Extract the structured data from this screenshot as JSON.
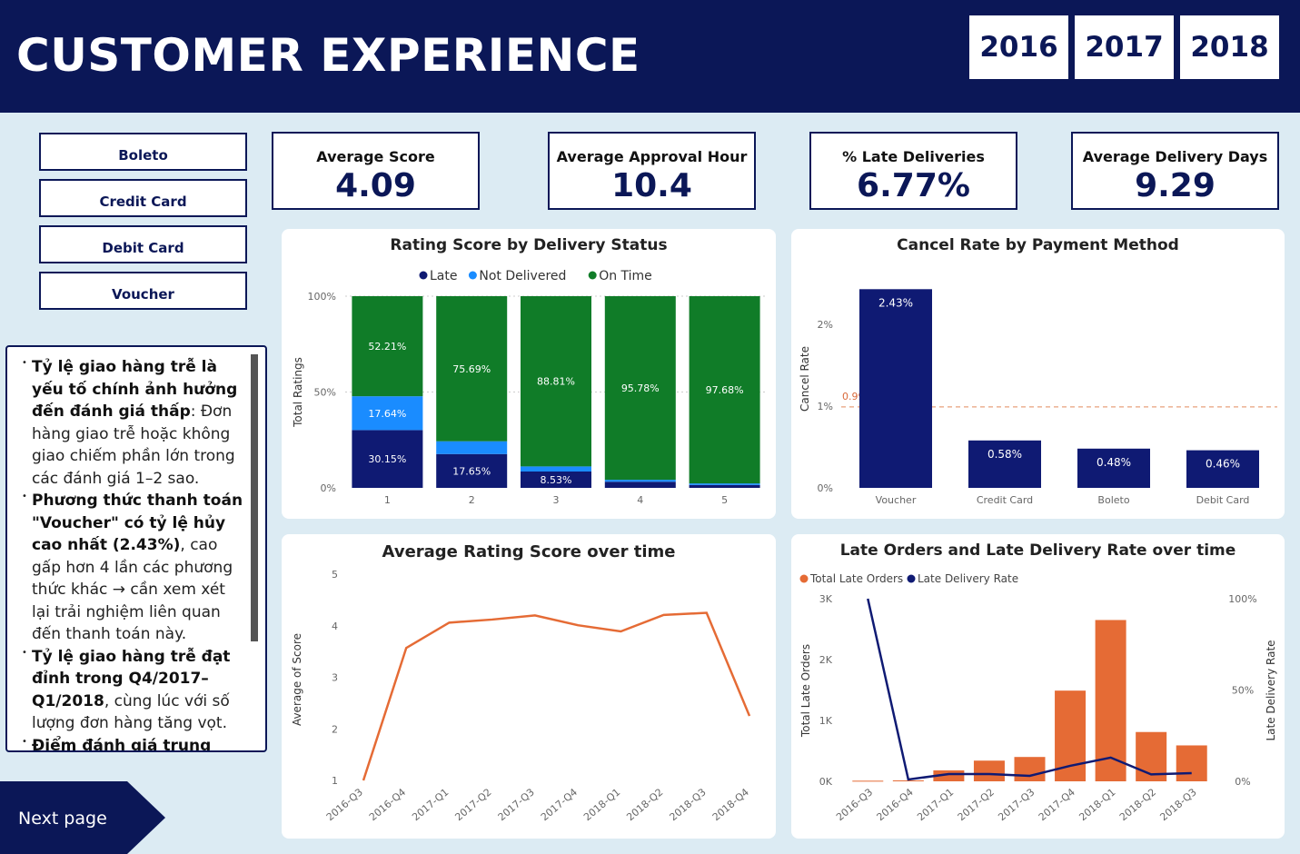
{
  "header": {
    "title": "CUSTOMER EXPERIENCE",
    "years": [
      "2016",
      "2017",
      "2018"
    ]
  },
  "payment_filters": [
    "Boleto",
    "Credit Card",
    "Debit Card",
    "Voucher"
  ],
  "kpis": [
    {
      "label": "Average Score",
      "value": "4.09"
    },
    {
      "label": "Average Approval Hour",
      "value": "10.4"
    },
    {
      "label": "% Late Deliveries",
      "value": "6.77%"
    },
    {
      "label": "Average Delivery Days",
      "value": "9.29"
    }
  ],
  "notes": {
    "items": [
      {
        "bold": "Tỷ lệ giao hàng trễ là yếu tố chính ảnh hưởng đến đánh giá thấp",
        "text": ": Đơn hàng giao trễ hoặc không giao chiếm phần lớn trong các đánh giá 1–2 sao."
      },
      {
        "bold": "Phương thức thanh toán \"Voucher\" có tỷ lệ hủy cao nhất (2.43%)",
        "text": ", cao gấp hơn 4 lần các phương thức khác → cần xem xét lại trải nghiệm liên quan đến thanh toán này."
      },
      {
        "bold": "Tỷ lệ giao hàng trễ đạt đỉnh trong Q4/2017–Q1/2018",
        "text": ", cùng lúc với số lượng đơn hàng tăng vọt."
      },
      {
        "bold": "Điểm đánh giá trung bình",
        "text": ""
      }
    ]
  },
  "nav": {
    "next_label": "Next page"
  },
  "colors": {
    "navy": "#0b1757",
    "late": "#0f1a73",
    "not_delivered": "#1a8cff",
    "on_time": "#107c28",
    "orange": "#e56b35"
  },
  "chart_data": [
    {
      "id": "rating_by_status",
      "type": "bar",
      "stacked": "100%",
      "title": "Rating Score by Delivery Status",
      "ylabel": "Total Ratings",
      "yticks": [
        "0%",
        "50%",
        "100%"
      ],
      "categories": [
        "1",
        "2",
        "3",
        "4",
        "5"
      ],
      "series": [
        {
          "name": "Late",
          "values": [
            30.15,
            17.65,
            8.53,
            3.2,
            1.5
          ],
          "labels": [
            "30.15%",
            "17.65%",
            "8.53%",
            "",
            ""
          ]
        },
        {
          "name": "Not Delivered",
          "values": [
            17.64,
            6.66,
            2.66,
            1.02,
            0.82
          ],
          "labels": [
            "17.64%",
            "",
            "",
            "",
            ""
          ]
        },
        {
          "name": "On Time",
          "values": [
            52.21,
            75.69,
            88.81,
            95.78,
            97.68
          ],
          "labels": [
            "52.21%",
            "75.69%",
            "88.81%",
            "95.78%",
            "97.68%"
          ]
        }
      ]
    },
    {
      "id": "cancel_rate",
      "type": "bar",
      "title": "Cancel Rate by Payment Method",
      "ylabel": "Cancel Rate",
      "yticks": [
        "0%",
        "1%",
        "2%"
      ],
      "ylim": [
        0,
        2.5
      ],
      "categories": [
        "Voucher",
        "Credit Card",
        "Boleto",
        "Debit Card"
      ],
      "values": [
        2.43,
        0.58,
        0.48,
        0.46
      ],
      "labels": [
        "2.43%",
        "0.58%",
        "0.48%",
        "0.46%"
      ],
      "reference_line": {
        "value": 0.99,
        "label": "0.99%"
      }
    },
    {
      "id": "avg_rating_time",
      "type": "line",
      "title": "Average Rating Score over time",
      "ylabel": "Average of Score",
      "yticks": [
        "1",
        "2",
        "3",
        "4",
        "5"
      ],
      "ylim": [
        1,
        5
      ],
      "x": [
        "2016-Q3",
        "2016-Q4",
        "2017-Q1",
        "2017-Q2",
        "2017-Q3",
        "2017-Q4",
        "2018-Q1",
        "2018-Q2",
        "2018-Q3",
        "2018-Q4"
      ],
      "values": [
        1.0,
        3.57,
        4.06,
        4.12,
        4.2,
        4.01,
        3.89,
        4.21,
        4.25,
        2.25
      ]
    },
    {
      "id": "late_orders_time",
      "type": "bar",
      "title": "Late Orders and Late Delivery Rate over time",
      "ylabel": "Total Late Orders",
      "y2label": "Late Delivery Rate",
      "yticks": [
        "0K",
        "1K",
        "2K",
        "3K"
      ],
      "y2ticks": [
        "0%",
        "50%",
        "100%"
      ],
      "x": [
        "2016-Q3",
        "2016-Q4",
        "2017-Q1",
        "2017-Q2",
        "2017-Q3",
        "2017-Q4",
        "2018-Q1",
        "2018-Q2",
        "2018-Q3"
      ],
      "series": [
        {
          "name": "Total Late Orders",
          "type": "bar",
          "values": [
            10,
            15,
            180,
            340,
            400,
            1490,
            2650,
            810,
            590
          ]
        },
        {
          "name": "Late Delivery Rate",
          "type": "line",
          "values": [
            100,
            1,
            4,
            4,
            3,
            8.5,
            13,
            3.8,
            4.5
          ]
        }
      ]
    }
  ]
}
